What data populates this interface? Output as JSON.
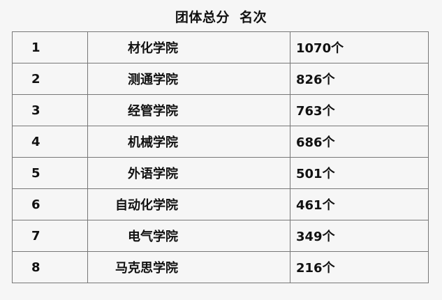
{
  "title": "团体总分  名次",
  "rows": [
    {
      "rank": "1",
      "college": "材化学院",
      "score": "1070个"
    },
    {
      "rank": "2",
      "college": "测通学院",
      "score": "826个"
    },
    {
      "rank": "3",
      "college": "经管学院",
      "score": "763个"
    },
    {
      "rank": "4",
      "college": "机械学院",
      "score": "686个"
    },
    {
      "rank": "5",
      "college": "外语学院",
      "score": "501个"
    },
    {
      "rank": "6",
      "college": "自动化学院",
      "score": "461个"
    },
    {
      "rank": "7",
      "college": "电气学院",
      "score": "349个"
    },
    {
      "rank": "8",
      "college": "马克思学院",
      "score": "216个"
    }
  ]
}
